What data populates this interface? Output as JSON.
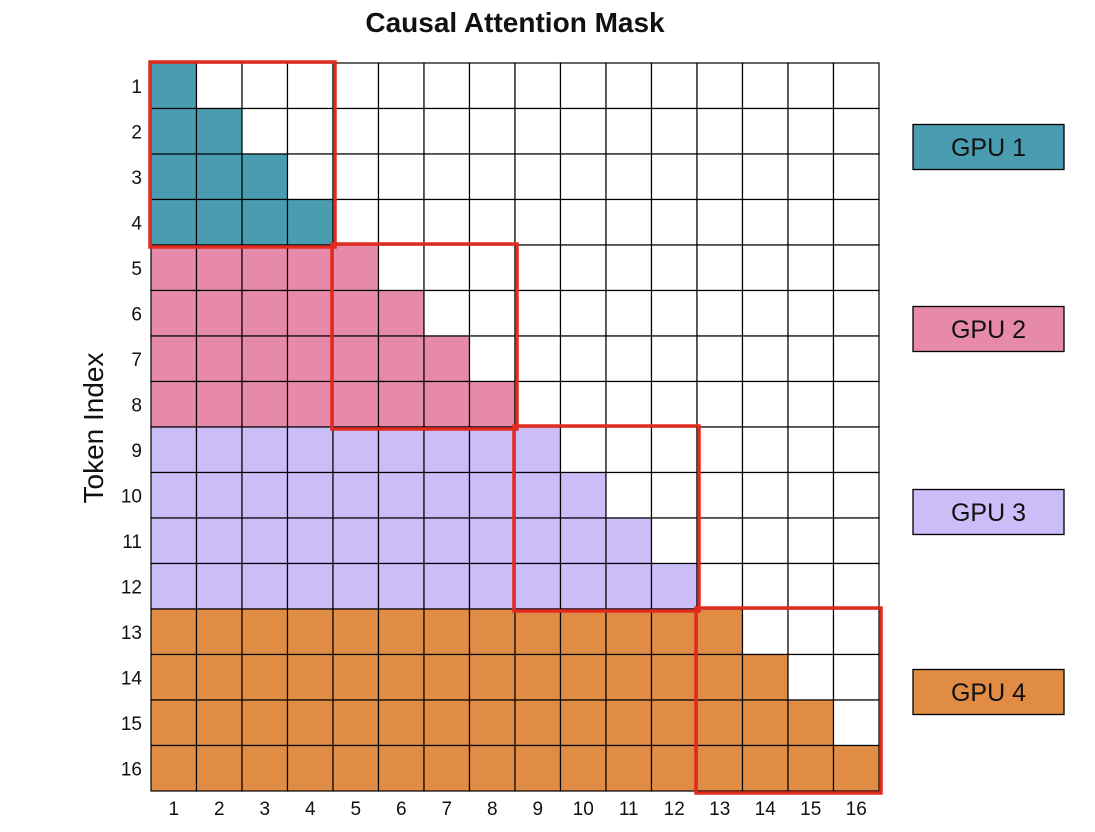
{
  "title": "Causal Attention Mask",
  "y_axis_label": "Token Index",
  "num_tokens": 16,
  "row_labels": [
    "1",
    "2",
    "3",
    "4",
    "5",
    "6",
    "7",
    "8",
    "9",
    "10",
    "11",
    "12",
    "13",
    "14",
    "15",
    "16"
  ],
  "col_labels": [
    "1",
    "2",
    "3",
    "4",
    "5",
    "6",
    "7",
    "8",
    "9",
    "10",
    "11",
    "12",
    "13",
    "14",
    "15",
    "16"
  ],
  "groups": [
    {
      "label": "GPU 1",
      "start_token": 1,
      "end_token": 4,
      "color": "#4a9db0"
    },
    {
      "label": "GPU 2",
      "start_token": 5,
      "end_token": 8,
      "color": "#e78aa9"
    },
    {
      "label": "GPU 3",
      "start_token": 9,
      "end_token": 12,
      "color": "#cbbdf7"
    },
    {
      "label": "GPU 4",
      "start_token": 13,
      "end_token": 16,
      "color": "#e08c45"
    }
  ],
  "colors": {
    "grid_line": "#000000",
    "empty_cell": "#ffffff",
    "highlight_box": "#e02b20"
  }
}
